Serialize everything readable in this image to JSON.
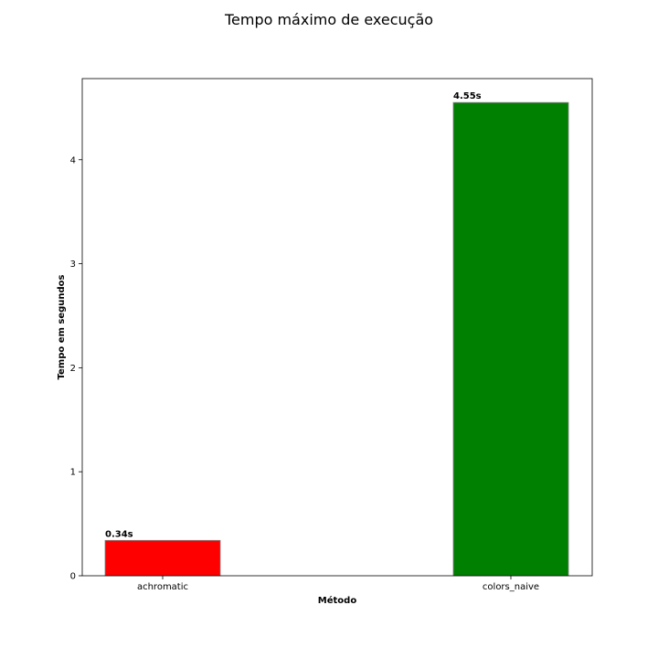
{
  "chart_data": {
    "type": "bar",
    "title": "Tempo máximo de execução",
    "xlabel": "Método",
    "ylabel": "Tempo em segundos",
    "categories": [
      "achromatic",
      "colors_naive"
    ],
    "values": [
      0.34,
      4.55
    ],
    "data_labels": [
      "0.34s",
      "4.55s"
    ],
    "bar_colors": [
      "#ff0000",
      "#008000"
    ],
    "bar_edge_color": "#808080",
    "yticks": [
      0,
      1,
      2,
      3,
      4
    ],
    "ylim": [
      0,
      4.78
    ],
    "grid": false,
    "legend": "none"
  }
}
